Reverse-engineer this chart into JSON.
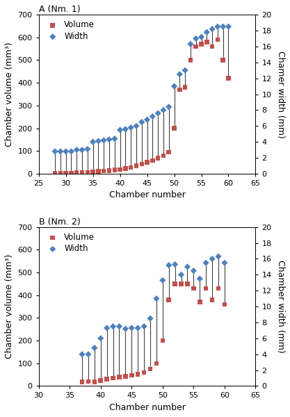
{
  "panel_A": {
    "title": "A (Nm. 1)",
    "chamber_numbers_vol": [
      28,
      29,
      30,
      31,
      32,
      33,
      34,
      35,
      36,
      37,
      38,
      39,
      40,
      41,
      42,
      43,
      44,
      45,
      46,
      47,
      48,
      49,
      50,
      51,
      52,
      53,
      54,
      55,
      56,
      57,
      58,
      59,
      60
    ],
    "volumes": [
      2,
      2,
      2,
      3,
      4,
      5,
      6,
      8,
      10,
      12,
      14,
      16,
      18,
      22,
      28,
      35,
      42,
      50,
      58,
      68,
      80,
      95,
      200,
      370,
      380,
      500,
      560,
      570,
      580,
      560,
      590,
      500,
      420
    ],
    "chamber_numbers_wid": [
      28,
      29,
      30,
      31,
      32,
      33,
      34,
      35,
      36,
      37,
      38,
      39,
      40,
      41,
      42,
      43,
      44,
      45,
      46,
      47,
      48,
      49,
      50,
      51,
      52,
      53,
      54,
      55,
      56,
      57,
      58,
      59,
      60
    ],
    "widths": [
      2.8,
      2.8,
      2.8,
      2.8,
      3.0,
      3.0,
      3.1,
      4.0,
      4.1,
      4.2,
      4.3,
      4.4,
      5.5,
      5.6,
      5.8,
      6.0,
      6.5,
      6.8,
      7.2,
      7.6,
      8.0,
      8.4,
      11.0,
      12.5,
      13.0,
      16.3,
      17.0,
      17.2,
      17.8,
      18.2,
      18.5,
      18.5,
      18.5
    ],
    "xlim": [
      25,
      65
    ],
    "ylim_vol": [
      0,
      700
    ],
    "ylim_wid": [
      0,
      20
    ],
    "xticks": [
      25,
      30,
      35,
      40,
      45,
      50,
      55,
      60,
      65
    ],
    "yticks_vol": [
      0,
      100,
      200,
      300,
      400,
      500,
      600,
      700
    ],
    "yticks_wid": [
      0,
      2,
      4,
      6,
      8,
      10,
      12,
      14,
      16,
      18,
      20
    ]
  },
  "panel_B": {
    "title": "B (Nm. 2)",
    "chamber_numbers_vol": [
      37,
      38,
      39,
      40,
      41,
      42,
      43,
      44,
      45,
      46,
      47,
      48,
      49,
      50,
      51,
      52,
      53,
      54,
      55,
      56,
      57,
      58,
      59,
      60
    ],
    "volumes": [
      18,
      20,
      18,
      25,
      30,
      35,
      40,
      42,
      48,
      52,
      60,
      75,
      100,
      200,
      380,
      450,
      450,
      450,
      430,
      370,
      430,
      380,
      430,
      360
    ],
    "chamber_numbers_wid": [
      37,
      38,
      39,
      40,
      41,
      42,
      43,
      44,
      45,
      46,
      47,
      48,
      49,
      50,
      51,
      52,
      53,
      54,
      55,
      56,
      57,
      58,
      59,
      60
    ],
    "widths": [
      4.0,
      4.0,
      4.8,
      6.0,
      7.3,
      7.5,
      7.5,
      7.2,
      7.3,
      7.3,
      7.5,
      8.5,
      11.0,
      13.3,
      15.2,
      15.3,
      14.0,
      15.0,
      14.5,
      13.5,
      15.5,
      16.0,
      16.3,
      15.5
    ],
    "xlim": [
      30,
      65
    ],
    "ylim_vol": [
      0,
      700
    ],
    "ylim_wid": [
      0,
      20
    ],
    "xticks": [
      30,
      35,
      40,
      45,
      50,
      55,
      60,
      65
    ],
    "yticks_vol": [
      0,
      100,
      200,
      300,
      400,
      500,
      600,
      700
    ],
    "yticks_wid": [
      0,
      2,
      4,
      6,
      8,
      10,
      12,
      14,
      16,
      18,
      20
    ]
  },
  "vol_color": "#C0504D",
  "wid_color": "#4F81BD",
  "line_color": "#404040",
  "ylabel_left": "Chamber volume (mm³)",
  "ylabel_right_A": "Chamer width (mm)",
  "ylabel_right_B": "Chamber width (mm)",
  "xlabel": "Chamber number",
  "vol_label": "Volume",
  "wid_label": "Width"
}
